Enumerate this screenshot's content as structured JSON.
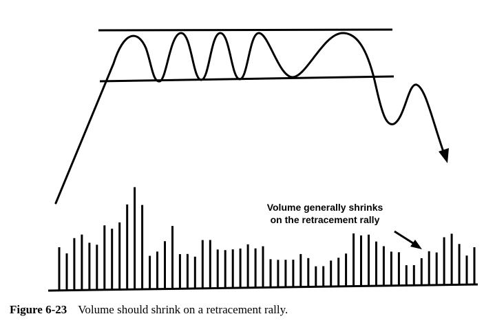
{
  "chart_data": {
    "type": "bar",
    "description_text": {
      "annotation_line1": "Volume generally shrinks",
      "annotation_line2": "on the retracement rally"
    },
    "volume_values": [
      62,
      53,
      75,
      80,
      68,
      65,
      93,
      88,
      97,
      123,
      148,
      122,
      48,
      54,
      69,
      91,
      50,
      50,
      46,
      70,
      70,
      56,
      55,
      56,
      57,
      63,
      57,
      60,
      41,
      40,
      40,
      40,
      48,
      42,
      30,
      30,
      38,
      42,
      48,
      77,
      74,
      75,
      65,
      58,
      50,
      49,
      30,
      30,
      40,
      50,
      48,
      70,
      75,
      60,
      43,
      55
    ],
    "xlim": [
      0,
      55
    ],
    "ylim": [
      0,
      160
    ],
    "colors": {
      "ink": "#000000",
      "background": "#ffffff"
    }
  },
  "caption": {
    "label": "Figure 6-23",
    "text": "Volume should shrink on a retracement rally."
  }
}
